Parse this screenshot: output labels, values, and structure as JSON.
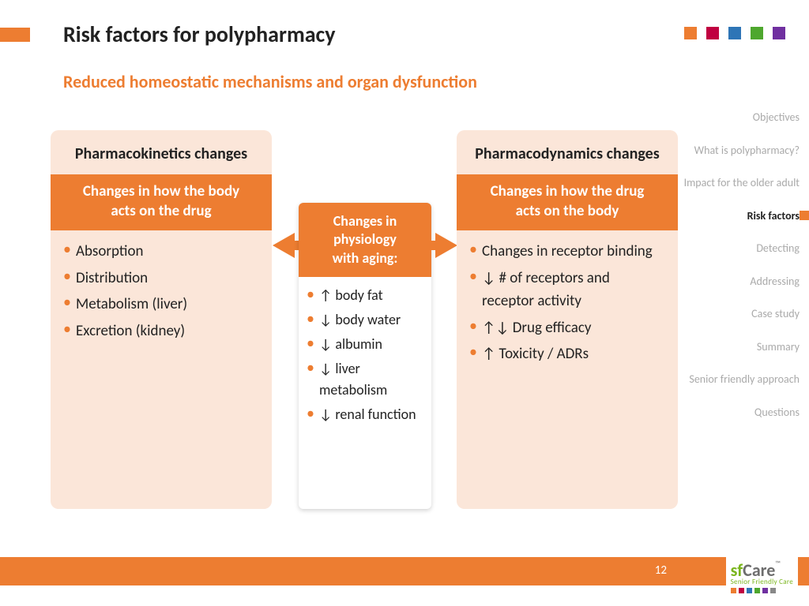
{
  "title": "Risk factors for polypharmacy",
  "subtitle": "Reduced homeostatic mechanisms and organ dysfunction",
  "corner_colors": [
    "#ed7d31",
    "#c00040",
    "#2e75b6",
    "#4ea72e",
    "#7030a0"
  ],
  "panels": {
    "left": {
      "title": "Pharmacokinetics changes",
      "sub_line1": "Changes in how the body",
      "sub_line2": "acts on the drug",
      "items": [
        "Absorption",
        "Distribution",
        "Metabolism (liver)",
        "Excretion (kidney)"
      ]
    },
    "mid": {
      "sub_line1": "Changes in physiology",
      "sub_line2": "with aging:",
      "items": [
        "↑ body fat",
        "↓ body water",
        "↓ albumin",
        "↓ liver metabolism",
        "↓ renal function"
      ]
    },
    "right": {
      "title": "Pharmacodynamics changes",
      "sub_line1": "Changes in how the drug",
      "sub_line2": "acts on the body",
      "items": [
        "Changes in receptor binding",
        "↓ # of receptors and receptor activity",
        "↑↓ Drug efficacy",
        "↑ Toxicity / ADRs"
      ]
    }
  },
  "nav": {
    "items": [
      "Objectives",
      "What is polypharmacy?",
      "Impact for the older adult",
      "Risk factors",
      "Detecting",
      "Addressing",
      "Case study",
      "Summary",
      "Senior friendly approach",
      "Questions"
    ],
    "active_index": 3
  },
  "page_number": "12",
  "logo": {
    "sf": "sf",
    "care": "Care",
    "tm": "™",
    "tag": "Senior Friendly Care",
    "dot_colors": [
      "#ed7d31",
      "#c00040",
      "#2e75b6",
      "#4ea72e",
      "#7030a0",
      "#888"
    ]
  },
  "colors": {
    "accent": "#ed7d31",
    "panel_bg": "#fbe6d9"
  }
}
